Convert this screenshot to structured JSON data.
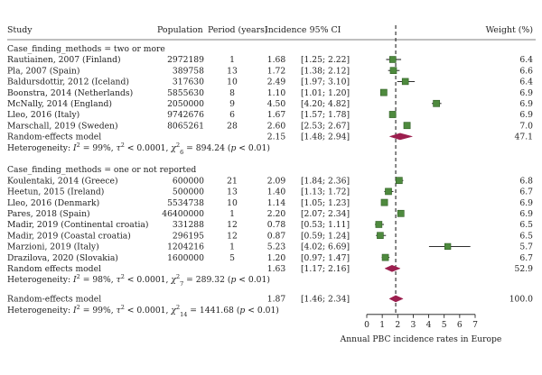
{
  "chart_data": {
    "type": "forest",
    "columns": {
      "study": "Study",
      "population": "Population",
      "period": "Period (years)",
      "incidence": "Incidence",
      "ci": "95% CI",
      "weight": "Weight (%)"
    },
    "groups": [
      {
        "label": "Case_finding_methods = two or more",
        "studies": [
          {
            "study": "Rautiainen, 2007 (Finland)",
            "population": "2972189",
            "period": "1",
            "incidence": "1.68",
            "ci": "[1.25; 2.22]",
            "weight": "6.4",
            "est": 1.68,
            "lo": 1.25,
            "hi": 2.22
          },
          {
            "study": "Pla, 2007 (Spain)",
            "population": "389758",
            "period": "13",
            "incidence": "1.72",
            "ci": "[1.38; 2.12]",
            "weight": "6.6",
            "est": 1.72,
            "lo": 1.38,
            "hi": 2.12
          },
          {
            "study": "Baldursdottir, 2012 (Iceland)",
            "population": "317630",
            "period": "10",
            "incidence": "2.49",
            "ci": "[1.97; 3.10]",
            "weight": "6.4",
            "est": 2.49,
            "lo": 1.97,
            "hi": 3.1
          },
          {
            "study": "Boonstra, 2014 (Netherlands)",
            "population": "5855630",
            "period": "8",
            "incidence": "1.10",
            "ci": "[1.01; 1.20]",
            "weight": "6.9",
            "est": 1.1,
            "lo": 1.01,
            "hi": 1.2
          },
          {
            "study": "McNally, 2014 (England)",
            "population": "2050000",
            "period": "9",
            "incidence": "4.50",
            "ci": "[4.20; 4.82]",
            "weight": "6.9",
            "est": 4.5,
            "lo": 4.2,
            "hi": 4.82
          },
          {
            "study": "Lleo, 2016 (Italy)",
            "population": "9742676",
            "period": "6",
            "incidence": "1.67",
            "ci": "[1.57; 1.78]",
            "weight": "6.9",
            "est": 1.67,
            "lo": 1.57,
            "hi": 1.78
          },
          {
            "study": "Marschall, 2019 (Sweden)",
            "population": "8065261",
            "period": "28",
            "incidence": "2.60",
            "ci": "[2.53; 2.67]",
            "weight": "7.0",
            "est": 2.6,
            "lo": 2.53,
            "hi": 2.67
          }
        ],
        "summary": {
          "label": "Random-effects model",
          "incidence": "2.15",
          "ci": "[1.48; 2.94]",
          "weight": "47.1",
          "est": 2.15,
          "lo": 1.48,
          "hi": 2.94
        },
        "heterogeneity": {
          "prefix": "Heterogeneity: ",
          "i2": "= 99%, ",
          "tau2": "< 0.0001, ",
          "chi2_df": "6",
          "chi2": "= 894.24 (",
          "p": "< 0.01)"
        }
      },
      {
        "label": "Case_finding_methods = one or not reported",
        "studies": [
          {
            "study": "Koulentaki, 2014 (Greece)",
            "population": "600000",
            "period": "21",
            "incidence": "2.09",
            "ci": "[1.84; 2.36]",
            "weight": "6.8",
            "est": 2.09,
            "lo": 1.84,
            "hi": 2.36
          },
          {
            "study": "Heetun, 2015 (Ireland)",
            "population": "500000",
            "period": "13",
            "incidence": "1.40",
            "ci": "[1.13; 1.72]",
            "weight": "6.7",
            "est": 1.4,
            "lo": 1.13,
            "hi": 1.72
          },
          {
            "study": "Lleo, 2016 (Denmark)",
            "population": "5534738",
            "period": "10",
            "incidence": "1.14",
            "ci": "[1.05; 1.23]",
            "weight": "6.9",
            "est": 1.14,
            "lo": 1.05,
            "hi": 1.23
          },
          {
            "study": "Pares, 2018 (Spain)",
            "population": "46400000",
            "period": "1",
            "incidence": "2.20",
            "ci": "[2.07; 2.34]",
            "weight": "6.9",
            "est": 2.2,
            "lo": 2.07,
            "hi": 2.34
          },
          {
            "study": "Madir, 2019 (Continental croatia)",
            "population": "331288",
            "period": "12",
            "incidence": "0.78",
            "ci": "[0.53; 1.11]",
            "weight": "6.5",
            "est": 0.78,
            "lo": 0.53,
            "hi": 1.11
          },
          {
            "study": "Madir, 2019 (Coastal croatia)",
            "population": "296195",
            "period": "12",
            "incidence": "0.87",
            "ci": "[0.59; 1.24]",
            "weight": "6.5",
            "est": 0.87,
            "lo": 0.59,
            "hi": 1.24
          },
          {
            "study": "Marzioni, 2019 (Italy)",
            "population": "1204216",
            "period": "1",
            "incidence": "5.23",
            "ci": "[4.02; 6.69]",
            "weight": "5.7",
            "est": 5.23,
            "lo": 4.02,
            "hi": 6.69
          },
          {
            "study": "Drazilova, 2020 (Slovakia)",
            "population": "1600000",
            "period": "5",
            "incidence": "1.20",
            "ci": "[0.97; 1.47]",
            "weight": "6.7",
            "est": 1.2,
            "lo": 0.97,
            "hi": 1.47
          }
        ],
        "summary": {
          "label": "Random effects model",
          "incidence": "1.63",
          "ci": "[1.17; 2.16]",
          "weight": "52.9",
          "est": 1.63,
          "lo": 1.17,
          "hi": 2.16
        },
        "heterogeneity": {
          "prefix": "Heterogeneity: ",
          "i2": "= 98%, ",
          "tau2": "< 0.0001, ",
          "chi2_df": "7",
          "chi2": "= 289.32 (",
          "p": "< 0.01)"
        }
      }
    ],
    "overall": {
      "label": "Random-effects model",
      "incidence": "1.87",
      "ci": "[1.46; 2.34]",
      "weight": "100.0",
      "est": 1.87,
      "lo": 1.46,
      "hi": 2.34,
      "heterogeneity": {
        "prefix": "Heterogeneity: ",
        "i2": "= 99%, ",
        "tau2": "< 0.0001, ",
        "chi2_df": "14",
        "chi2": "= 1441.68 (",
        "p": "< 0.01)"
      }
    },
    "xaxis": {
      "label": "Annual PBC incidence rates in Europe",
      "ticks": [
        0,
        1,
        2,
        3,
        4,
        5,
        6,
        7
      ],
      "range": [
        0,
        7
      ],
      "reference_line": 1.87
    },
    "colors": {
      "box": "#4e8a3e",
      "box_edge": "#2f5e24",
      "diamond": "#9c1e4e",
      "line": "#111111"
    }
  }
}
